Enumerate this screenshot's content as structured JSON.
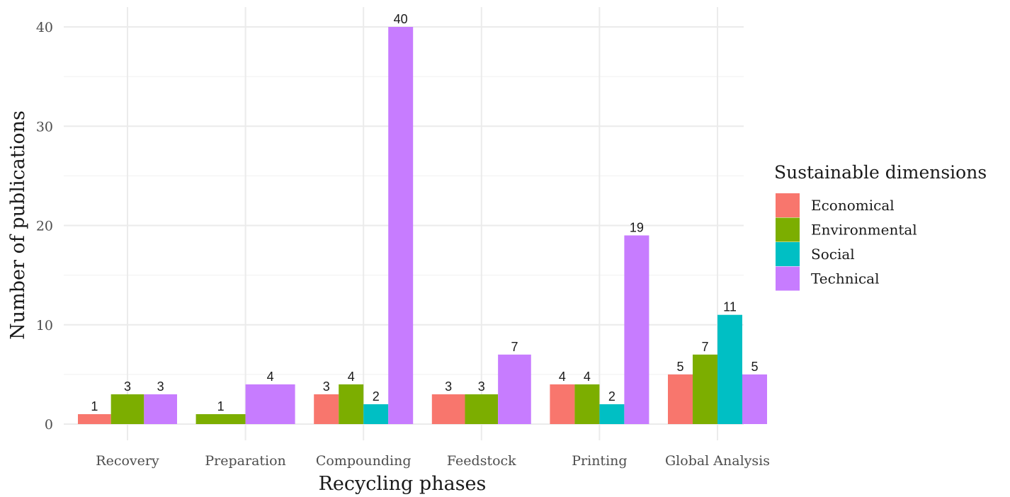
{
  "chart_data": {
    "type": "bar",
    "categories": [
      "Recovery",
      "Preparation",
      "Compounding",
      "Feedstock",
      "Printing",
      "Global Analysis"
    ],
    "series": [
      {
        "name": "Economical",
        "color": "#F8766D",
        "values": [
          1,
          null,
          3,
          3,
          4,
          5
        ]
      },
      {
        "name": "Environmental",
        "color": "#7CAE00",
        "values": [
          3,
          1,
          4,
          3,
          4,
          7
        ]
      },
      {
        "name": "Social",
        "color": "#00BFC4",
        "values": [
          null,
          null,
          2,
          null,
          2,
          11
        ]
      },
      {
        "name": "Technical",
        "color": "#C77CFF",
        "values": [
          3,
          4,
          40,
          7,
          19,
          5
        ]
      }
    ],
    "title": "",
    "xlabel": "Recycling phases",
    "ylabel": "Number of publications",
    "ylim": [
      0,
      41.5
    ],
    "yticks": [
      0,
      10,
      20,
      30,
      40
    ],
    "yticks_labels": [
      "0",
      "10",
      "20",
      "30",
      "40"
    ],
    "grid": true,
    "legend": {
      "title": "Sustainable dimensions",
      "position": "right"
    }
  }
}
